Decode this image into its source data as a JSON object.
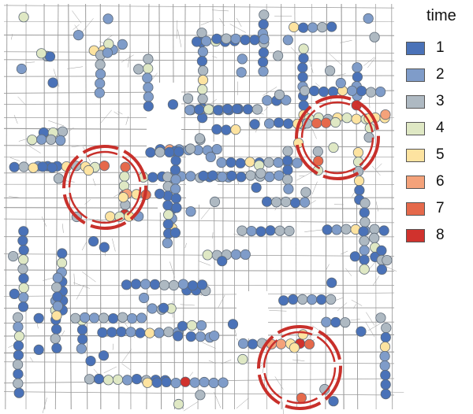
{
  "legend": {
    "title": "time",
    "items": [
      {
        "label": "1",
        "color": "#4a72b8"
      },
      {
        "label": "2",
        "color": "#7f9cc9"
      },
      {
        "label": "3",
        "color": "#aeb9c2"
      },
      {
        "label": "4",
        "color": "#dfe8c4"
      },
      {
        "label": "5",
        "color": "#fde3a0"
      },
      {
        "label": "6",
        "color": "#f4a27a"
      },
      {
        "label": "7",
        "color": "#e5694b"
      },
      {
        "label": "8",
        "color": "#d0322d"
      }
    ]
  },
  "highlight_color": "#c8302b",
  "street_color": "#9a9a9a"
}
